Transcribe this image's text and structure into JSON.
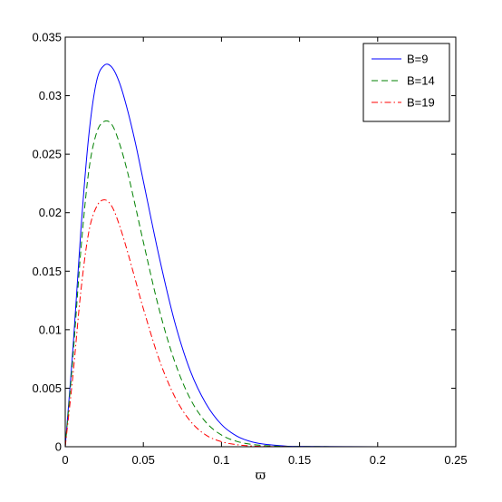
{
  "chart_data": {
    "type": "line",
    "title": "",
    "xlabel": "ϖ",
    "ylabel": "",
    "xlim": [
      0,
      0.25
    ],
    "ylim": [
      0,
      0.035
    ],
    "x_ticks": [
      0,
      0.05,
      0.1,
      0.15,
      0.2,
      0.25
    ],
    "x_tick_labels": [
      "0",
      "0.05",
      "0.1",
      "0.15",
      "0.2",
      "0.25"
    ],
    "y_ticks": [
      0,
      0.005,
      0.01,
      0.015,
      0.02,
      0.025,
      0.03,
      0.035
    ],
    "y_tick_labels": [
      "0",
      "0.005",
      "0.01",
      "0.015",
      "0.02",
      "0.025",
      "0.03",
      "0.035"
    ],
    "grid": false,
    "legend_position": "top-right",
    "series": [
      {
        "name": "B=9",
        "color": "#0000ff",
        "dash": "solid",
        "x": [
          0,
          0.005,
          0.01,
          0.015,
          0.02,
          0.025,
          0.03,
          0.035,
          0.04,
          0.045,
          0.05,
          0.06,
          0.07,
          0.08,
          0.09,
          0.1,
          0.11,
          0.12,
          0.13,
          0.14,
          0.15,
          0.2,
          0.25
        ],
        "y": [
          0,
          0.0085,
          0.0185,
          0.0265,
          0.0312,
          0.0326,
          0.0324,
          0.031,
          0.0287,
          0.0259,
          0.0227,
          0.0163,
          0.0107,
          0.0065,
          0.0037,
          0.0019,
          0.0009,
          0.0004,
          0.00018,
          7e-05,
          3e-05,
          0,
          0
        ]
      },
      {
        "name": "B=14",
        "color": "#008000",
        "dash": "dashed",
        "x": [
          0,
          0.005,
          0.01,
          0.015,
          0.02,
          0.025,
          0.03,
          0.035,
          0.04,
          0.045,
          0.05,
          0.06,
          0.07,
          0.08,
          0.09,
          0.1,
          0.11,
          0.12,
          0.13,
          0.14,
          0.15,
          0.2,
          0.25
        ],
        "y": [
          0,
          0.0078,
          0.0168,
          0.0235,
          0.0268,
          0.0278,
          0.0275,
          0.0258,
          0.0234,
          0.0205,
          0.0175,
          0.0118,
          0.0073,
          0.0041,
          0.0021,
          0.001,
          0.00045,
          0.00019,
          8e-05,
          3e-05,
          1e-05,
          0,
          0
        ]
      },
      {
        "name": "B=19",
        "color": "#ff0000",
        "dash": "dash-dot",
        "x": [
          0,
          0.005,
          0.01,
          0.015,
          0.02,
          0.025,
          0.03,
          0.035,
          0.04,
          0.045,
          0.05,
          0.06,
          0.07,
          0.08,
          0.09,
          0.1,
          0.11,
          0.12,
          0.13,
          0.14,
          0.15,
          0.2,
          0.25
        ],
        "y": [
          0,
          0.0062,
          0.0133,
          0.0183,
          0.0205,
          0.0211,
          0.0205,
          0.0188,
          0.0166,
          0.0142,
          0.0118,
          0.0075,
          0.0043,
          0.0022,
          0.001,
          0.00043,
          0.00017,
          6e-05,
          2e-05,
          1e-05,
          0,
          0,
          0
        ]
      }
    ]
  }
}
